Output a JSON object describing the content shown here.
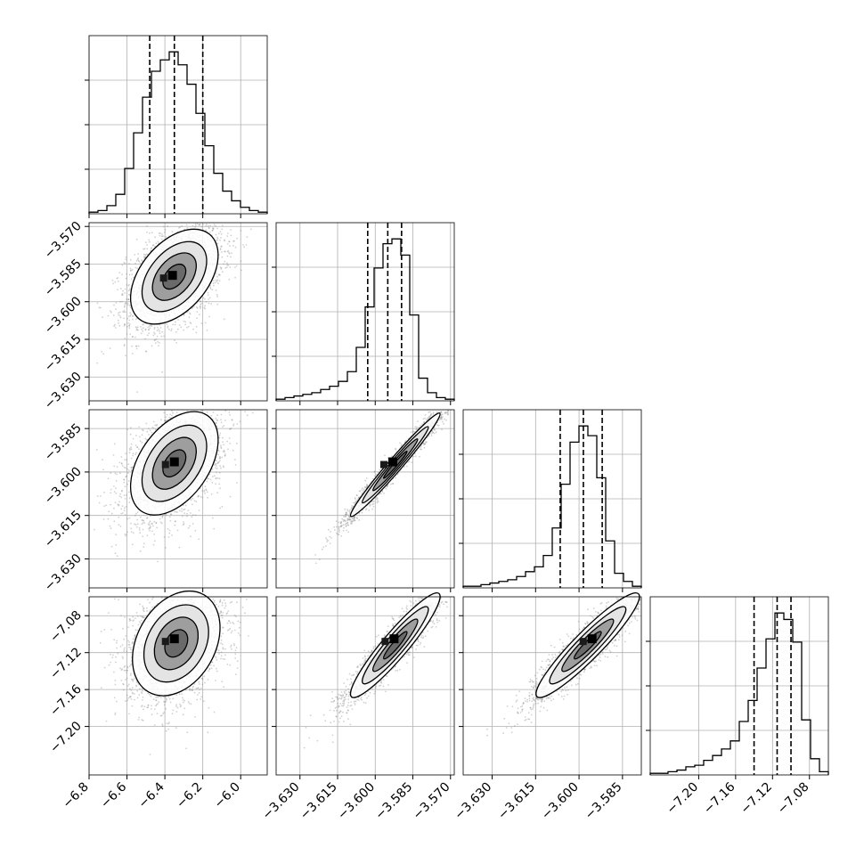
{
  "figure": {
    "kind": "corner plot",
    "parameter_count": 4,
    "grid": true,
    "colors": {
      "line": "#000000",
      "scatter": "#7a7a7a",
      "grid": "#b0b0b0",
      "density_dark": "#000000",
      "background": "#ffffff"
    }
  },
  "chart_data": [
    {
      "type": "bar",
      "panel": "diag-1",
      "x_edges_range": [
        -6.8,
        -5.86
      ],
      "x_ticks": [
        -6.8,
        -6.6,
        -6.4,
        -6.2,
        -6.0
      ],
      "x_tick_labels": [
        "−6.8",
        "−6.6",
        "−6.4",
        "−6.2",
        "−6.0"
      ],
      "values": [
        1,
        2,
        5,
        12,
        28,
        50,
        72,
        88,
        95,
        100,
        92,
        80,
        62,
        42,
        25,
        14,
        8,
        4,
        2,
        1
      ],
      "quantiles": [
        -6.48,
        -6.35,
        -6.2
      ],
      "ylim": [
        0,
        110
      ]
    },
    {
      "type": "bar",
      "panel": "diag-2",
      "x_edges_range": [
        -3.6395,
        -3.5685
      ],
      "x_ticks": [
        -3.63,
        -3.615,
        -3.6,
        -3.585,
        -3.57
      ],
      "x_tick_labels": [
        "−3.630",
        "−3.615",
        "−3.600",
        "−3.585",
        "−3.570"
      ],
      "values": [
        1,
        2,
        3,
        4,
        5,
        7,
        9,
        12,
        18,
        33,
        58,
        82,
        97,
        100,
        90,
        53,
        14,
        5,
        2,
        1
      ],
      "quantiles": [
        -3.603,
        -3.595,
        -3.5895
      ],
      "ylim": [
        0,
        110
      ]
    },
    {
      "type": "bar",
      "panel": "diag-3",
      "x_edges_range": [
        -3.64,
        -3.5785
      ],
      "x_ticks": [
        -3.63,
        -3.615,
        -3.6,
        -3.585
      ],
      "x_tick_labels": [
        "−3.630",
        "−3.615",
        "−3.600",
        "−3.585"
      ],
      "values": [
        1,
        1,
        2,
        3,
        4,
        5,
        7,
        10,
        13,
        20,
        37,
        64,
        90,
        100,
        94,
        68,
        29,
        9,
        4,
        1
      ],
      "quantiles": [
        -3.6065,
        -3.5985,
        -3.592
      ],
      "ylim": [
        0,
        110
      ]
    },
    {
      "type": "bar",
      "panel": "diag-4",
      "x_edges_range": [
        -7.2525,
        -7.0595
      ],
      "x_ticks": [
        -7.2,
        -7.16,
        -7.12,
        -7.08
      ],
      "x_tick_labels": [
        "−7.20",
        "−7.16",
        "−7.12",
        "−7.08"
      ],
      "values": [
        1,
        1,
        2,
        3,
        5,
        6,
        9,
        12,
        16,
        21,
        33,
        46,
        66,
        84,
        100,
        96,
        82,
        34,
        10,
        2
      ],
      "quantiles": [
        -7.14,
        -7.115,
        -7.1
      ],
      "ylim": [
        0,
        110
      ]
    },
    {
      "type": "scatter",
      "panel": "off-2-1",
      "x_range": [
        -6.8,
        -5.86
      ],
      "y_range": [
        -3.6395,
        -3.5685
      ],
      "y_ticks": [
        -3.57,
        -3.585,
        -3.6,
        -3.615,
        -3.63
      ],
      "y_tick_labels": [
        "−3.570",
        "−3.585",
        "−3.600",
        "−3.615",
        "−3.630"
      ],
      "mean": [
        -6.35,
        -3.59
      ],
      "sd": [
        0.11,
        0.009
      ],
      "correlation": 0.45,
      "peak": [
        -6.36,
        -3.5895
      ]
    },
    {
      "type": "scatter",
      "panel": "off-3-1",
      "x_range": [
        -6.8,
        -5.86
      ],
      "y_range": [
        -3.64,
        -3.5785
      ],
      "y_ticks": [
        -3.585,
        -3.6,
        -3.615,
        -3.63
      ],
      "y_tick_labels": [
        "−3.585",
        "−3.600",
        "−3.615",
        "−3.630"
      ],
      "mean": [
        -6.35,
        -3.597
      ],
      "sd": [
        0.11,
        0.0085
      ],
      "correlation": 0.45,
      "peak": [
        -6.35,
        -3.5965
      ]
    },
    {
      "type": "scatter",
      "panel": "off-3-2",
      "x_range": [
        -3.6395,
        -3.5685
      ],
      "y_range": [
        -3.64,
        -3.5785
      ],
      "mean": [
        -3.592,
        -3.5975
      ],
      "sd": [
        0.0085,
        0.0085
      ],
      "correlation": 0.98,
      "peak": [
        -3.593,
        -3.5965
      ]
    },
    {
      "type": "scatter",
      "panel": "off-4-1",
      "x_range": [
        -6.8,
        -5.86
      ],
      "y_range": [
        -7.2525,
        -7.0595
      ],
      "y_ticks": [
        -7.08,
        -7.12,
        -7.16,
        -7.2
      ],
      "y_tick_labels": [
        "−7.08",
        "−7.12",
        "−7.16",
        "−7.20"
      ],
      "mean": [
        -6.34,
        -7.11
      ],
      "sd": [
        0.11,
        0.027
      ],
      "correlation": 0.3,
      "peak": [
        -6.35,
        -7.105
      ]
    },
    {
      "type": "scatter",
      "panel": "off-4-2",
      "x_range": [
        -3.6395,
        -3.5685
      ],
      "y_range": [
        -7.2525,
        -7.0595
      ],
      "mean": [
        -3.592,
        -7.112
      ],
      "sd": [
        0.0085,
        0.027
      ],
      "correlation": 0.93,
      "peak": [
        -3.5925,
        -7.105
      ]
    },
    {
      "type": "scatter",
      "panel": "off-4-3",
      "x_range": [
        -3.64,
        -3.5785
      ],
      "y_range": [
        -7.2525,
        -7.0595
      ],
      "mean": [
        -3.597,
        -7.112
      ],
      "sd": [
        0.0085,
        0.027
      ],
      "correlation": 0.93,
      "peak": [
        -3.5955,
        -7.105
      ]
    }
  ]
}
